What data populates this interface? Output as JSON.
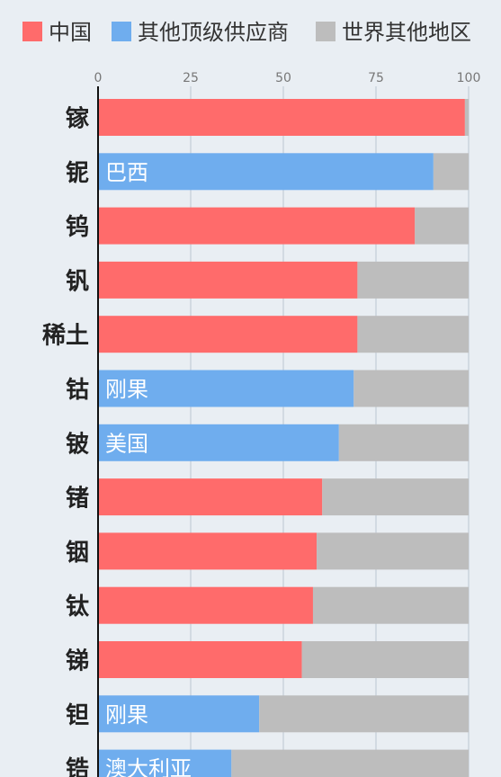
{
  "chart_data": {
    "type": "bar",
    "orientation": "horizontal",
    "stacked": true,
    "xlim": [
      0,
      100
    ],
    "ticks": [
      0,
      25,
      50,
      75,
      100
    ],
    "grid": true,
    "legend_position": "top",
    "legend": [
      {
        "label": "中国",
        "color": "#ff6b6b"
      },
      {
        "label": "其他顶级供应商",
        "color": "#6fadee"
      },
      {
        "label": "世界其他地区",
        "color": "#bdbdbd"
      }
    ],
    "categories": [
      "镓",
      "铌",
      "钨",
      "钒",
      "稀土",
      "钴",
      "铍",
      "锗",
      "铟",
      "钛",
      "锑",
      "钽",
      "锆"
    ],
    "top_supplier": [
      "中国",
      "巴西",
      "中国",
      "中国",
      "中国",
      "刚果",
      "美国",
      "中国",
      "中国",
      "中国",
      "中国",
      "刚果",
      "澳大利亚"
    ],
    "top_supplier_labels": [
      "",
      "巴西",
      "",
      "",
      "",
      "刚果",
      "美国",
      "",
      "",
      "",
      "",
      "刚果",
      "澳大利亚"
    ],
    "top_share": [
      99,
      90.5,
      85.5,
      70,
      70,
      69,
      65,
      60.5,
      59,
      58,
      55,
      43.5,
      36
    ],
    "rest_share": [
      1,
      9.5,
      14.5,
      30,
      30,
      31,
      35,
      39.5,
      41,
      42,
      45,
      56.5,
      64
    ]
  }
}
